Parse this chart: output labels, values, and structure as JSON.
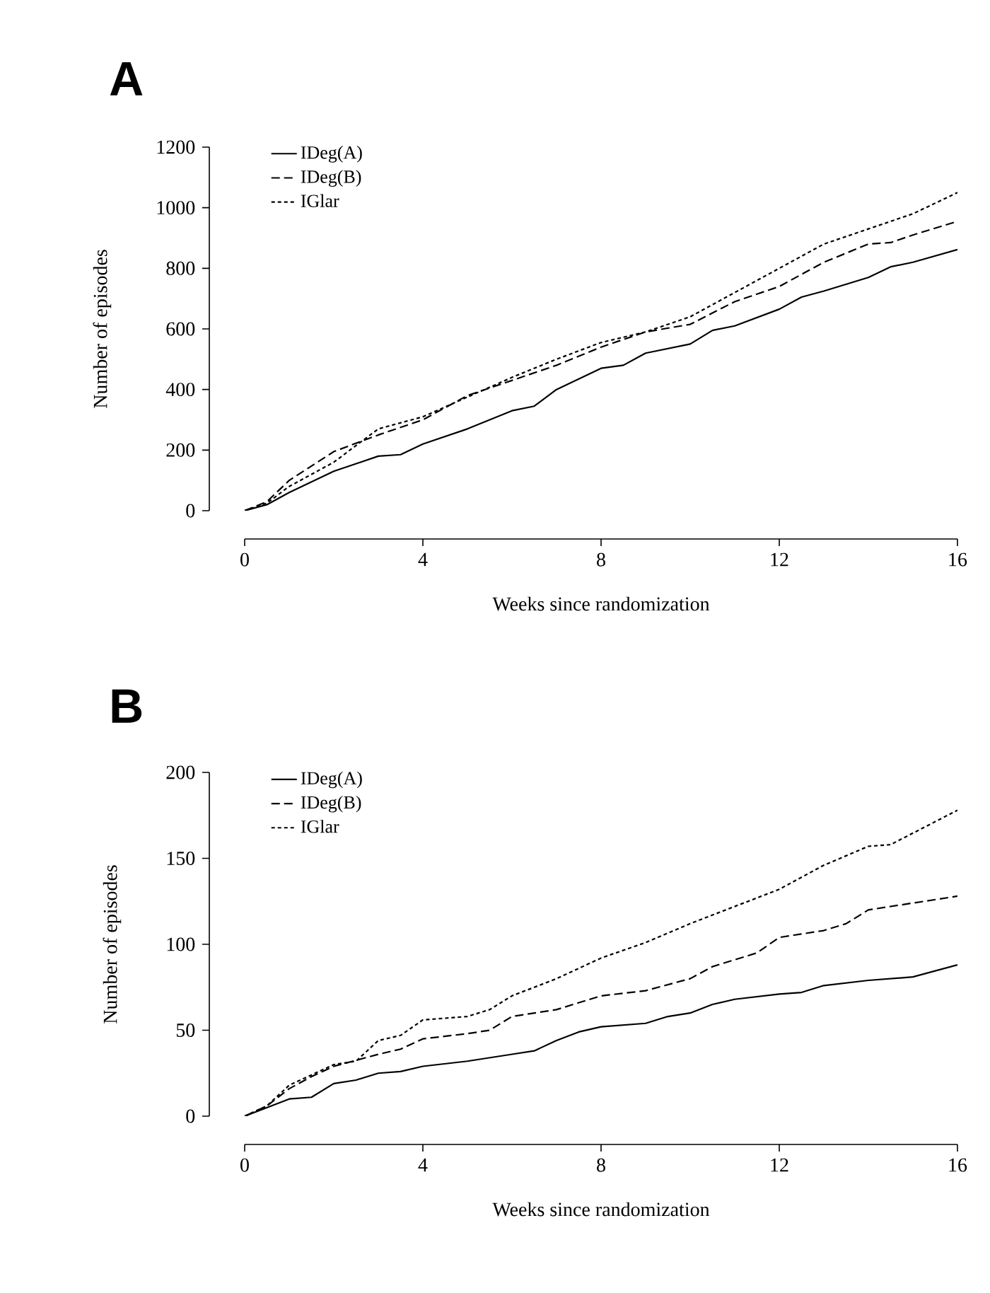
{
  "chart_data": [
    {
      "type": "line",
      "title": "A",
      "xlabel": "Weeks since randomization",
      "ylabel": "Number of episodes",
      "xlim": [
        0,
        16
      ],
      "xticks": [
        0,
        4,
        8,
        12,
        16
      ],
      "ylim": [
        0,
        1200
      ],
      "yticks": [
        0,
        200,
        400,
        600,
        800,
        1000,
        1200
      ],
      "legend": "top left",
      "marker": "none",
      "grid": false,
      "series": [
        {
          "name": "IDeg(A)",
          "color": "#000000",
          "line_style": "solid",
          "x": [
            0,
            0.5,
            1,
            2,
            3,
            3.5,
            4,
            5,
            6,
            6.5,
            7,
            8,
            8.5,
            9,
            10,
            10.5,
            11,
            12,
            12.5,
            13,
            14,
            14.5,
            15,
            16
          ],
          "values": [
            0,
            20,
            60,
            130,
            180,
            185,
            220,
            270,
            330,
            345,
            400,
            470,
            480,
            520,
            550,
            595,
            610,
            665,
            705,
            725,
            770,
            805,
            820,
            862
          ]
        },
        {
          "name": "IDeg(B)",
          "color": "#000000",
          "line_style": "dashed",
          "x": [
            0,
            0.5,
            1,
            2,
            3,
            4,
            5,
            6,
            7,
            8,
            9,
            10,
            11,
            12,
            13,
            14,
            14.5,
            15,
            16
          ],
          "values": [
            0,
            30,
            100,
            195,
            250,
            300,
            380,
            430,
            480,
            540,
            590,
            615,
            690,
            740,
            820,
            880,
            885,
            910,
            955
          ]
        },
        {
          "name": "IGlar",
          "color": "#000000",
          "line_style": "dotted",
          "x": [
            0,
            0.5,
            1,
            2,
            3,
            4,
            5,
            6,
            7,
            8,
            9,
            10,
            11,
            12,
            13,
            14,
            15,
            16
          ],
          "values": [
            0,
            25,
            80,
            160,
            270,
            310,
            375,
            440,
            500,
            555,
            590,
            640,
            720,
            800,
            880,
            930,
            980,
            1050
          ]
        }
      ]
    },
    {
      "type": "line",
      "title": "B",
      "xlabel": "Weeks since randomization",
      "ylabel": "Number of episodes",
      "xlim": [
        0,
        16
      ],
      "xticks": [
        0,
        4,
        8,
        12,
        16
      ],
      "ylim": [
        0,
        200
      ],
      "yticks": [
        0,
        50,
        100,
        150,
        200
      ],
      "legend": "top left",
      "marker": "none",
      "grid": false,
      "series": [
        {
          "name": "IDeg(A)",
          "color": "#000000",
          "line_style": "solid",
          "x": [
            0,
            0.5,
            1,
            1.5,
            2,
            2.5,
            3,
            3.5,
            4,
            5,
            6,
            6.5,
            7,
            7.5,
            8,
            9,
            9.5,
            10,
            10.5,
            11,
            12,
            12.5,
            13,
            14,
            15,
            16
          ],
          "values": [
            0,
            5,
            10,
            11,
            19,
            21,
            25,
            26,
            29,
            32,
            36,
            38,
            44,
            49,
            52,
            54,
            58,
            60,
            65,
            68,
            71,
            72,
            76,
            79,
            81,
            88
          ]
        },
        {
          "name": "IDeg(B)",
          "color": "#000000",
          "line_style": "dashed",
          "x": [
            0,
            0.5,
            1,
            1.5,
            2,
            3,
            3.5,
            4,
            5,
            5.5,
            6,
            7,
            8,
            9,
            10,
            10.5,
            11,
            11.5,
            12,
            13,
            13.5,
            14,
            15,
            16
          ],
          "values": [
            0,
            6,
            16,
            23,
            29,
            36,
            39,
            45,
            48,
            50,
            58,
            62,
            70,
            73,
            80,
            87,
            91,
            95,
            104,
            108,
            112,
            120,
            124,
            128
          ]
        },
        {
          "name": "IGlar",
          "color": "#000000",
          "line_style": "dotted",
          "x": [
            0,
            0.5,
            1,
            2,
            2.5,
            3,
            3.5,
            4,
            5,
            5.5,
            6,
            7,
            8,
            9,
            10,
            11,
            12,
            13,
            14,
            14.5,
            16
          ],
          "values": [
            0,
            6,
            18,
            30,
            32,
            44,
            47,
            56,
            58,
            62,
            70,
            80,
            92,
            101,
            112,
            122,
            132,
            146,
            157,
            158,
            178
          ]
        }
      ]
    }
  ]
}
